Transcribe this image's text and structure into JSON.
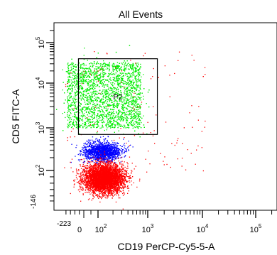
{
  "chart_data": {
    "type": "scatter",
    "title": "All Events",
    "xlabel": "CD19 PerCP-Cy5-5-A",
    "ylabel": "CD5 FITC-A",
    "x_scale": "biexponential",
    "y_scale": "biexponential",
    "xlim": [
      -223,
      262143
    ],
    "ylim": [
      -146,
      262143
    ],
    "x_ticks": [
      {
        "value": -223,
        "label": "-223"
      },
      {
        "value": 0,
        "label": "0"
      },
      {
        "value": 100,
        "label": "10",
        "exp": "2"
      },
      {
        "value": 1000,
        "label": "10",
        "exp": "3"
      },
      {
        "value": 10000,
        "label": "10",
        "exp": "4"
      },
      {
        "value": 100000,
        "label": "10",
        "exp": "5"
      }
    ],
    "y_ticks": [
      {
        "value": -146,
        "label": "-146"
      },
      {
        "value": 100,
        "label": "10",
        "exp": "2"
      },
      {
        "value": 1000,
        "label": "10",
        "exp": "3"
      },
      {
        "value": 10000,
        "label": "10",
        "exp": "4"
      },
      {
        "value": 100000,
        "label": "10",
        "exp": "5"
      }
    ],
    "gate": {
      "name": "P2",
      "x_range": [
        -60,
        1500
      ],
      "y_range": [
        700,
        40000
      ],
      "color": "#000000"
    },
    "populations": [
      {
        "color": "#00ee00",
        "cx": 150,
        "cy": 5000,
        "count": 3400
      },
      {
        "color": "#0000ff",
        "cx": 120,
        "cy": 280,
        "count": 1500
      },
      {
        "color": "#ff0000",
        "cx": 130,
        "cy": 40,
        "count": 4500
      },
      {
        "color": "#ff0000",
        "cx": 600,
        "cy": 2000,
        "count": 130
      }
    ]
  }
}
